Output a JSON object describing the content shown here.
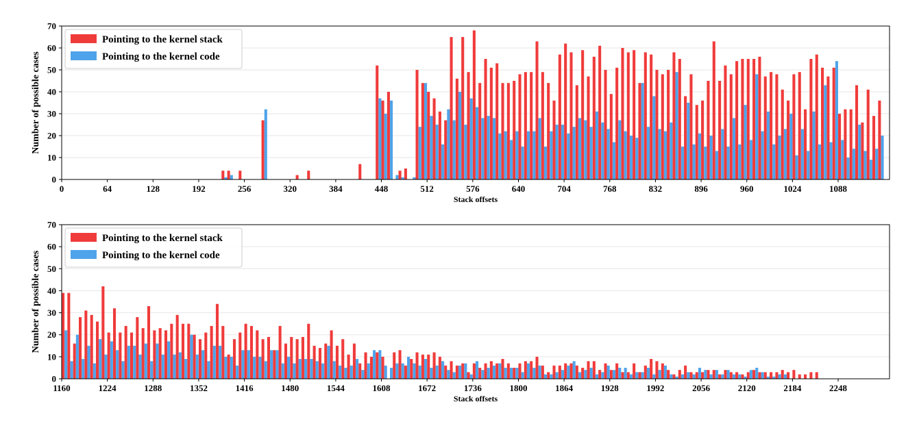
{
  "colors": {
    "stack": "#f03b3b",
    "code": "#4fa3ea",
    "axis": "#000000",
    "grid": "#e6e6e6"
  },
  "chart_data": [
    {
      "type": "bar",
      "xlabel": "Stack offsets",
      "ylabel": "Number of possible cases",
      "xlim": [
        0,
        1160
      ],
      "ylim": [
        0,
        70
      ],
      "xticks": [
        0,
        64,
        128,
        192,
        256,
        320,
        384,
        448,
        512,
        576,
        640,
        704,
        768,
        832,
        896,
        960,
        1024,
        1088
      ],
      "yticks": [
        0,
        10,
        20,
        30,
        40,
        50,
        60,
        70
      ],
      "grid": "horizontal",
      "legend_position": "top-left",
      "x": [
        224,
        232,
        248,
        280,
        328,
        344,
        416,
        440,
        448,
        456,
        464,
        472,
        480,
        488,
        496,
        504,
        512,
        520,
        528,
        536,
        544,
        552,
        560,
        568,
        576,
        584,
        592,
        600,
        608,
        616,
        624,
        632,
        640,
        648,
        656,
        664,
        672,
        680,
        688,
        696,
        704,
        712,
        720,
        728,
        736,
        744,
        752,
        760,
        768,
        776,
        784,
        792,
        800,
        808,
        816,
        824,
        832,
        840,
        848,
        856,
        864,
        872,
        880,
        888,
        896,
        904,
        912,
        920,
        928,
        936,
        944,
        952,
        960,
        968,
        976,
        984,
        992,
        1000,
        1008,
        1016,
        1024,
        1032,
        1040,
        1048,
        1056,
        1064,
        1072,
        1080,
        1088,
        1096,
        1104,
        1112,
        1120,
        1128,
        1136,
        1144,
        1152
      ],
      "series": [
        {
          "name": "Pointing to the kernel stack",
          "color_key": "stack",
          "values": [
            4,
            4,
            4,
            27,
            2,
            4,
            7,
            52,
            36,
            40,
            0,
            4,
            5,
            0,
            50,
            44,
            40,
            37,
            31,
            27,
            65,
            46,
            65,
            49,
            68,
            44,
            55,
            51,
            53,
            44,
            44,
            45,
            48,
            49,
            49,
            63,
            49,
            44,
            36,
            57,
            62,
            58,
            43,
            59,
            47,
            56,
            61,
            50,
            39,
            51,
            60,
            58,
            59,
            44,
            58,
            57,
            50,
            48,
            50,
            58,
            55,
            38,
            48,
            34,
            36,
            45,
            63,
            45,
            52,
            48,
            54,
            55,
            55,
            55,
            56,
            47,
            49,
            48,
            41,
            36,
            48,
            49,
            32,
            55,
            57,
            51,
            47,
            51,
            30,
            32,
            32,
            43,
            26,
            41,
            29,
            36,
            0
          ]
        },
        {
          "name": "Pointing to the kernel code",
          "color_key": "code",
          "values": [
            1,
            2,
            0,
            32,
            0,
            0,
            0,
            37,
            30,
            36,
            2,
            1,
            0,
            1,
            24,
            44,
            29,
            25,
            16,
            32,
            27,
            40,
            25,
            37,
            33,
            28,
            29,
            28,
            21,
            22,
            18,
            22,
            15,
            22,
            22,
            28,
            15,
            22,
            25,
            25,
            21,
            24,
            28,
            27,
            24,
            31,
            26,
            23,
            17,
            27,
            22,
            20,
            19,
            44,
            24,
            38,
            23,
            22,
            26,
            49,
            15,
            35,
            16,
            21,
            15,
            20,
            13,
            23,
            15,
            28,
            16,
            34,
            18,
            48,
            22,
            31,
            16,
            20,
            23,
            30,
            11,
            23,
            13,
            31,
            16,
            43,
            17,
            54,
            18,
            10,
            14,
            25,
            13,
            9,
            14,
            20,
            0
          ]
        }
      ]
    },
    {
      "type": "bar",
      "xlabel": "Stack offsets",
      "ylabel": "Number of possible cases",
      "xlim": [
        1160,
        2320
      ],
      "ylim": [
        0,
        70
      ],
      "xticks": [
        1160,
        1224,
        1288,
        1352,
        1416,
        1480,
        1544,
        1608,
        1672,
        1736,
        1800,
        1864,
        1928,
        1992,
        2056,
        2120,
        2184,
        2248
      ],
      "yticks": [
        0,
        10,
        20,
        30,
        40,
        50,
        60,
        70
      ],
      "grid": "horizontal",
      "legend_position": "top-left",
      "x": [
        1160,
        1168,
        1176,
        1184,
        1192,
        1200,
        1208,
        1216,
        1224,
        1232,
        1240,
        1248,
        1256,
        1264,
        1272,
        1280,
        1288,
        1296,
        1304,
        1312,
        1320,
        1328,
        1336,
        1344,
        1352,
        1360,
        1368,
        1376,
        1384,
        1392,
        1400,
        1408,
        1416,
        1424,
        1432,
        1440,
        1448,
        1456,
        1464,
        1472,
        1480,
        1488,
        1496,
        1504,
        1512,
        1520,
        1528,
        1536,
        1544,
        1552,
        1560,
        1568,
        1576,
        1584,
        1592,
        1600,
        1608,
        1616,
        1624,
        1632,
        1640,
        1648,
        1656,
        1664,
        1672,
        1680,
        1688,
        1696,
        1704,
        1712,
        1720,
        1728,
        1736,
        1744,
        1752,
        1760,
        1768,
        1776,
        1784,
        1792,
        1800,
        1808,
        1816,
        1824,
        1832,
        1840,
        1848,
        1856,
        1864,
        1872,
        1880,
        1888,
        1896,
        1904,
        1912,
        1920,
        1928,
        1936,
        1944,
        1952,
        1960,
        1968,
        1976,
        1984,
        1992,
        2000,
        2008,
        2016,
        2024,
        2032,
        2040,
        2048,
        2056,
        2064,
        2072,
        2080,
        2088,
        2096,
        2104,
        2112,
        2120,
        2128,
        2136,
        2144,
        2152,
        2160,
        2168,
        2176,
        2184,
        2192,
        2200,
        2208,
        2216,
        2224,
        2232,
        2240,
        2248,
        2256,
        2264,
        2272,
        2280,
        2288,
        2296,
        2304,
        2312
      ],
      "series": [
        {
          "name": "Pointing to the kernel stack",
          "color_key": "stack",
          "values": [
            39,
            39,
            16,
            28,
            31,
            29,
            26,
            42,
            21,
            32,
            21,
            24,
            21,
            28,
            23,
            33,
            22,
            23,
            22,
            25,
            29,
            25,
            25,
            20,
            18,
            21,
            24,
            34,
            24,
            11,
            18,
            21,
            25,
            24,
            22,
            18,
            19,
            13,
            24,
            16,
            19,
            18,
            19,
            25,
            15,
            14,
            16,
            22,
            15,
            18,
            11,
            16,
            7,
            12,
            10,
            12,
            10,
            0,
            12,
            13,
            6,
            9,
            12,
            11,
            11,
            12,
            10,
            6,
            8,
            6,
            7,
            3,
            7,
            5,
            7,
            8,
            7,
            9,
            7,
            5,
            7,
            8,
            8,
            10,
            6,
            3,
            6,
            6,
            7,
            7,
            6,
            5,
            8,
            8,
            4,
            7,
            4,
            7,
            3,
            3,
            7,
            3,
            6,
            9,
            8,
            7,
            4,
            2,
            4,
            6,
            3,
            3,
            3,
            4,
            4,
            2,
            4,
            3,
            3,
            2,
            3,
            4,
            3,
            3,
            3,
            3,
            4,
            3,
            4,
            2,
            2,
            3,
            3,
            0,
            0,
            0,
            0,
            0,
            0,
            0,
            0,
            0,
            0,
            0,
            0
          ]
        },
        {
          "name": "Pointing to the kernel code",
          "color_key": "code",
          "values": [
            22,
            8,
            20,
            9,
            15,
            7,
            18,
            11,
            17,
            13,
            8,
            15,
            15,
            11,
            16,
            8,
            16,
            11,
            17,
            11,
            12,
            9,
            20,
            11,
            13,
            8,
            15,
            15,
            10,
            10,
            6,
            13,
            13,
            10,
            10,
            8,
            13,
            13,
            7,
            10,
            7,
            9,
            9,
            9,
            8,
            7,
            15,
            8,
            6,
            5,
            6,
            9,
            4,
            7,
            13,
            13,
            6,
            5,
            7,
            7,
            10,
            7,
            6,
            9,
            5,
            6,
            8,
            4,
            3,
            6,
            7,
            2,
            8,
            4,
            5,
            6,
            7,
            5,
            5,
            5,
            3,
            7,
            5,
            6,
            2,
            2,
            3,
            4,
            6,
            8,
            3,
            4,
            5,
            2,
            3,
            6,
            4,
            5,
            5,
            2,
            3,
            3,
            5,
            2,
            4,
            6,
            2,
            1,
            2,
            3,
            2,
            5,
            4,
            2,
            4,
            2,
            4,
            2,
            2,
            1,
            4,
            5,
            3,
            1,
            1,
            2,
            2,
            0,
            0,
            0,
            0,
            0,
            0,
            0,
            0,
            0,
            0,
            0,
            0,
            0,
            0,
            0,
            0,
            0,
            0
          ]
        }
      ]
    }
  ]
}
